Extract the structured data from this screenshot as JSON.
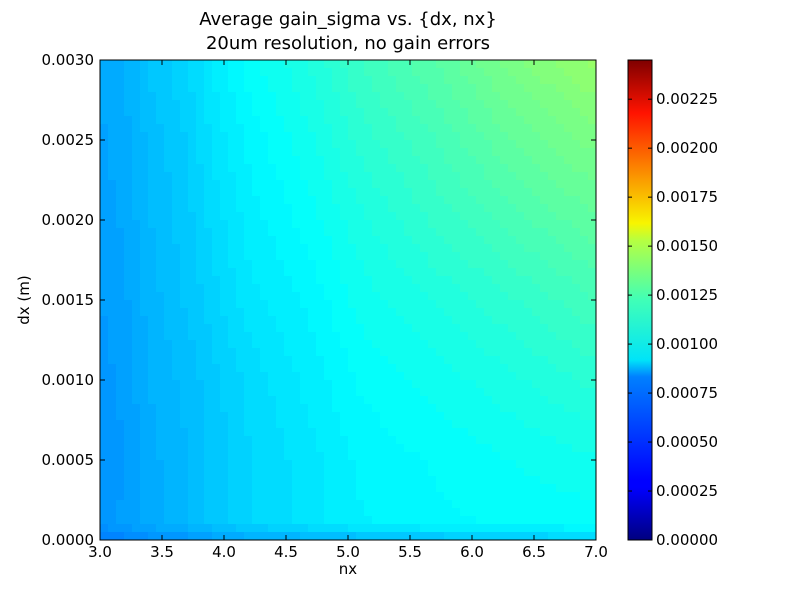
{
  "chart_data": {
    "type": "heatmap",
    "subtype": "filled-contour",
    "title": "Average gain_sigma vs. {dx, nx}",
    "subtitle": "20um resolution, no gain errors",
    "xlabel": "nx",
    "ylabel": "dx (m)",
    "xlim": [
      3.0,
      7.0
    ],
    "ylim": [
      0.0,
      0.003
    ],
    "x_ticks": [
      "3.0",
      "3.5",
      "4.0",
      "4.5",
      "5.0",
      "5.5",
      "6.0",
      "6.5",
      "7.0"
    ],
    "y_ticks": [
      "0.0000",
      "0.0005",
      "0.0010",
      "0.0015",
      "0.0020",
      "0.0025",
      "0.0030"
    ],
    "colorbar": {
      "colormap": "jet",
      "range": [
        0.0,
        0.00245
      ],
      "ticks": [
        "0.00000",
        "0.00025",
        "0.00050",
        "0.00075",
        "0.00100",
        "0.00125",
        "0.00150",
        "0.00175",
        "0.00200",
        "0.00225"
      ]
    },
    "x": [
      3.0,
      3.2,
      3.4,
      3.7,
      3.9,
      4.2,
      4.7,
      5.1,
      5.7,
      6.3,
      7.0
    ],
    "y": [
      0.0,
      0.0001,
      0.0005,
      0.001,
      0.0015,
      0.002,
      0.0025,
      0.003
    ],
    "z": [
      [
        0.0006,
        0.00062,
        0.00064,
        0.00066,
        0.00068,
        0.0007,
        0.00072,
        0.00074,
        0.00076,
        0.00078,
        0.0008
      ],
      [
        0.00066,
        0.00069,
        0.00072,
        0.00075,
        0.00078,
        0.00082,
        0.00086,
        0.00089,
        0.00091,
        0.00092,
        0.00093
      ],
      [
        0.00066,
        0.00068,
        0.00072,
        0.00075,
        0.00078,
        0.00082,
        0.00086,
        0.0009,
        0.00092,
        0.00094,
        0.00096
      ],
      [
        0.00067,
        0.00069,
        0.00073,
        0.00076,
        0.00079,
        0.00083,
        0.00088,
        0.00092,
        0.00095,
        0.00098,
        0.00102
      ],
      [
        0.00068,
        0.0007,
        0.00074,
        0.00078,
        0.00081,
        0.00086,
        0.0009,
        0.00095,
        0.00099,
        0.00103,
        0.00108
      ],
      [
        0.00069,
        0.00071,
        0.00075,
        0.00079,
        0.00083,
        0.00088,
        0.00093,
        0.00098,
        0.00104,
        0.00109,
        0.00115
      ],
      [
        0.0007,
        0.00072,
        0.00076,
        0.0008,
        0.00085,
        0.0009,
        0.00096,
        0.00102,
        0.00108,
        0.00115,
        0.00121
      ],
      [
        0.00071,
        0.00073,
        0.00078,
        0.00082,
        0.00087,
        0.00093,
        0.00099,
        0.00106,
        0.00113,
        0.00121,
        0.00128
      ]
    ]
  }
}
